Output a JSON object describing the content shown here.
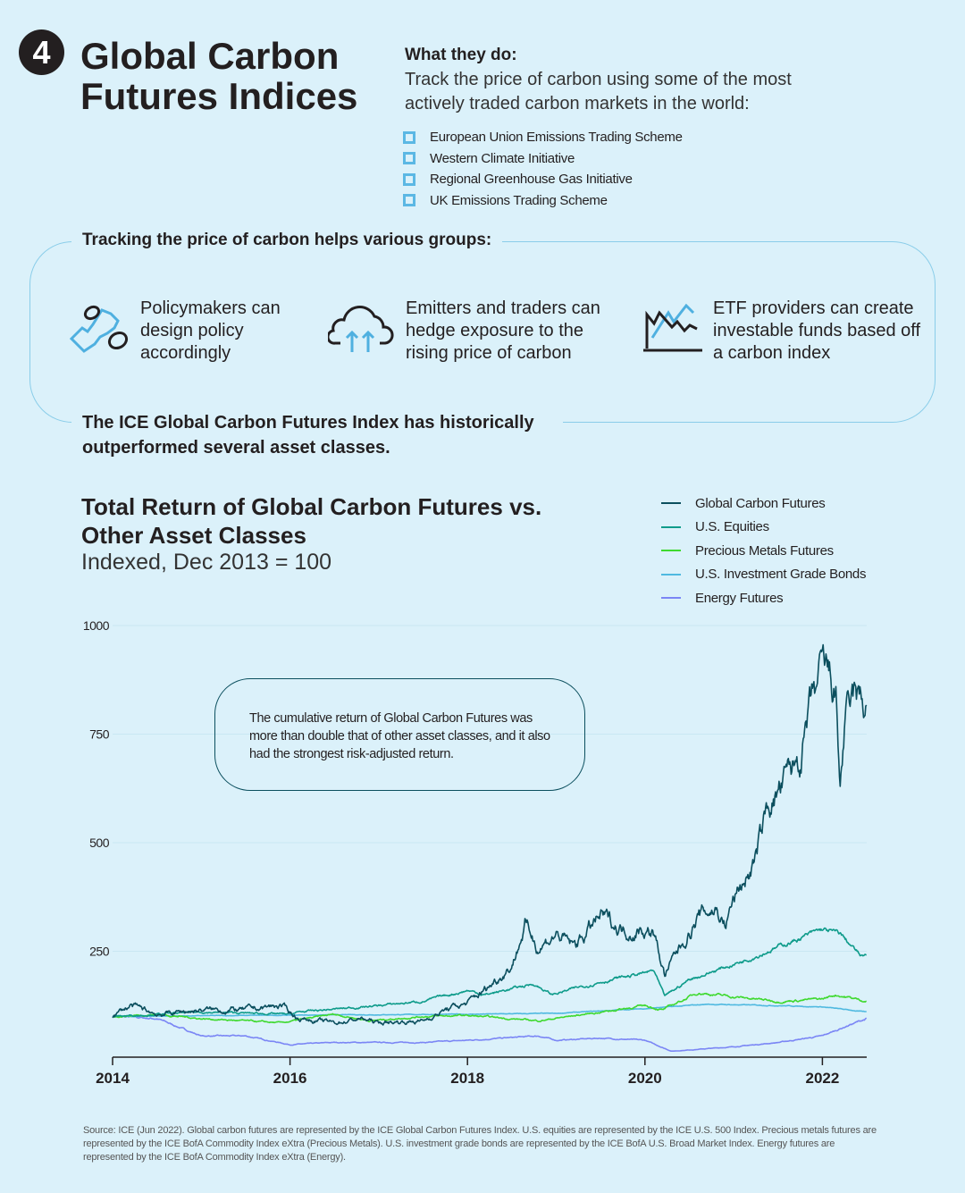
{
  "header": {
    "badge": "4",
    "title": "Global Carbon Futures Indices"
  },
  "what_they_do": {
    "heading": "What they do:",
    "text": "Track the price of carbon using some of the most actively traded carbon markets in the world:",
    "markets": [
      "European Union Emissions Trading Scheme",
      "Western Climate Initiative",
      "Regional Greenhouse Gas Initiative",
      "UK Emissions Trading Scheme"
    ]
  },
  "groups": {
    "heading": "Tracking the price of carbon helps various groups:",
    "items": [
      {
        "icon": "money-hand-icon",
        "text": "Policymakers can design policy accordingly"
      },
      {
        "icon": "cloud-upload-icon",
        "text": "Emitters and traders can hedge exposure to the rising price of carbon"
      },
      {
        "icon": "line-chart-icon",
        "text": "ETF providers can create investable funds based off a carbon index"
      }
    ]
  },
  "performance_statement": "The ICE Global Carbon Futures Index has historically outperformed several asset classes.",
  "note": "The cumulative return of Global Carbon Futures was more than double that of other asset classes, and it also had the strongest risk-adjusted return.",
  "source": "Source: ICE (Jun 2022). Global carbon futures are represented by the ICE Global Carbon Futures Index. U.S. equities are represented by the ICE U.S. 500 Index. Precious metals futures are represented by the ICE BofA Commodity Index eXtra (Precious Metals). U.S. investment grade bonds are represented by the ICE BofA U.S. Broad Market Index. Energy futures are represented by the ICE BofA Commodity Index eXtra (Energy).",
  "chart_data": {
    "type": "line",
    "title": "Total Return of Global Carbon Futures vs. Other Asset Classes",
    "subtitle": "Indexed, Dec 2013 = 100",
    "xlim": [
      2014,
      2022.5
    ],
    "ylim": [
      0,
      1000
    ],
    "x_ticks": [
      "2014",
      "2016",
      "2018",
      "2020",
      "2022"
    ],
    "y_ticks": [
      "250",
      "500",
      "750",
      "1000"
    ],
    "grid": true,
    "legend": "top-right",
    "series": [
      {
        "name": "Global Carbon Futures",
        "color": "#0b4f5e",
        "points": [
          [
            2014,
            100
          ],
          [
            2014.2,
            125
          ],
          [
            2014.5,
            105
          ],
          [
            2015,
            115
          ],
          [
            2015.5,
            115
          ],
          [
            2015.9,
            125
          ],
          [
            2016.1,
            95
          ],
          [
            2016.5,
            85
          ],
          [
            2016.8,
            95
          ],
          [
            2017,
            85
          ],
          [
            2017.5,
            90
          ],
          [
            2017.75,
            115
          ],
          [
            2018,
            130
          ],
          [
            2018.25,
            170
          ],
          [
            2018.5,
            220
          ],
          [
            2018.65,
            310
          ],
          [
            2018.8,
            260
          ],
          [
            2019,
            290
          ],
          [
            2019.2,
            260
          ],
          [
            2019.5,
            330
          ],
          [
            2019.75,
            300
          ],
          [
            2020,
            300
          ],
          [
            2020.1,
            290
          ],
          [
            2020.22,
            195
          ],
          [
            2020.4,
            260
          ],
          [
            2020.6,
            330
          ],
          [
            2020.8,
            350
          ],
          [
            2020.9,
            310
          ],
          [
            2021,
            370
          ],
          [
            2021.25,
            460
          ],
          [
            2021.4,
            590
          ],
          [
            2021.6,
            640
          ],
          [
            2021.75,
            700
          ],
          [
            2021.9,
            820
          ],
          [
            2022,
            880
          ],
          [
            2022.05,
            880
          ],
          [
            2022.15,
            840
          ],
          [
            2022.2,
            630
          ],
          [
            2022.25,
            760
          ],
          [
            2022.35,
            820
          ],
          [
            2022.5,
            810
          ]
        ]
      },
      {
        "name": "U.S. Equities",
        "color": "#0e9b8a",
        "points": [
          [
            2014,
            100
          ],
          [
            2015,
            110
          ],
          [
            2016,
            105
          ],
          [
            2016.1,
            110
          ],
          [
            2017,
            125
          ],
          [
            2017.5,
            135
          ],
          [
            2018,
            160
          ],
          [
            2018.2,
            150
          ],
          [
            2018.75,
            175
          ],
          [
            2018.95,
            150
          ],
          [
            2019.5,
            180
          ],
          [
            2020,
            200
          ],
          [
            2020.1,
            205
          ],
          [
            2020.22,
            145
          ],
          [
            2020.5,
            185
          ],
          [
            2021,
            220
          ],
          [
            2021.5,
            260
          ],
          [
            2022,
            300
          ],
          [
            2022.2,
            290
          ],
          [
            2022.45,
            235
          ],
          [
            2022.5,
            245
          ]
        ]
      },
      {
        "name": "Precious Metals Futures",
        "color": "#3fd92f",
        "points": [
          [
            2014,
            100
          ],
          [
            2014.5,
            105
          ],
          [
            2015,
            95
          ],
          [
            2015.9,
            85
          ],
          [
            2016.5,
            105
          ],
          [
            2016.9,
            90
          ],
          [
            2017.5,
            100
          ],
          [
            2018,
            102
          ],
          [
            2018.8,
            90
          ],
          [
            2019.5,
            110
          ],
          [
            2020,
            125
          ],
          [
            2020.2,
            115
          ],
          [
            2020.6,
            155
          ],
          [
            2021,
            145
          ],
          [
            2021.5,
            135
          ],
          [
            2022,
            140
          ],
          [
            2022.15,
            150
          ],
          [
            2022.5,
            135
          ]
        ]
      },
      {
        "name": "U.S. Investment Grade Bonds",
        "color": "#4fb9e0",
        "points": [
          [
            2014,
            100
          ],
          [
            2016,
            103
          ],
          [
            2018,
            105
          ],
          [
            2019,
            107
          ],
          [
            2020,
            118
          ],
          [
            2020.7,
            128
          ],
          [
            2021.5,
            125
          ],
          [
            2022,
            122
          ],
          [
            2022.5,
            110
          ]
        ]
      },
      {
        "name": "Energy Futures",
        "color": "#7b86f5",
        "points": [
          [
            2014,
            100
          ],
          [
            2014.5,
            95
          ],
          [
            2015,
            55
          ],
          [
            2015.5,
            55
          ],
          [
            2016,
            35
          ],
          [
            2016.5,
            40
          ],
          [
            2017.5,
            40
          ],
          [
            2018,
            45
          ],
          [
            2018.8,
            55
          ],
          [
            2019,
            45
          ],
          [
            2019.5,
            50
          ],
          [
            2020,
            45
          ],
          [
            2020.3,
            20
          ],
          [
            2021,
            30
          ],
          [
            2021.5,
            40
          ],
          [
            2022,
            55
          ],
          [
            2022.3,
            80
          ],
          [
            2022.5,
            95
          ]
        ]
      }
    ]
  }
}
